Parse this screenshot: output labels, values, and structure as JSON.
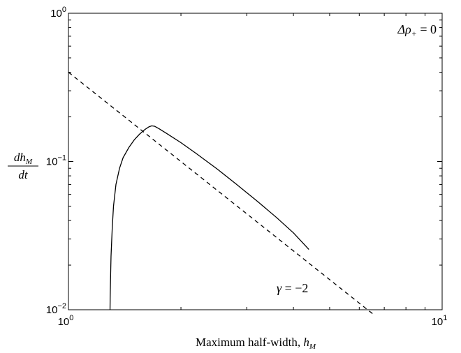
{
  "chart_data": {
    "type": "line",
    "xscale": "log",
    "yscale": "log",
    "xlim": [
      1,
      10
    ],
    "ylim": [
      0.01,
      1
    ],
    "grid": false,
    "xlabel": "Maximum half-width, h_M",
    "xlabel_text": "Maximum half-width, ",
    "xlabel_var": "h",
    "xlabel_sub": "M",
    "ylabel": "dh_M/dt",
    "ylabel_num": "dh",
    "ylabel_num_sub": "M",
    "ylabel_den": "dt",
    "xticks": [
      {
        "value": 1,
        "base": "10",
        "exp": "0"
      },
      {
        "value": 10,
        "base": "10",
        "exp": "1"
      }
    ],
    "yticks": [
      {
        "value": 0.01,
        "base": "10",
        "exp": "−2"
      },
      {
        "value": 0.1,
        "base": "10",
        "exp": "−1"
      },
      {
        "value": 1,
        "base": "10",
        "exp": "0"
      }
    ],
    "series": [
      {
        "style": "solid",
        "x": [
          1.292,
          1.293,
          1.296,
          1.3,
          1.31,
          1.32,
          1.34,
          1.37,
          1.4,
          1.45,
          1.5,
          1.55,
          1.6,
          1.64,
          1.67,
          1.7,
          1.75,
          1.85,
          2.0,
          2.2,
          2.5,
          2.8,
          3.2,
          3.6,
          4.0,
          4.4
        ],
        "y": [
          0.01,
          0.012,
          0.016,
          0.023,
          0.036,
          0.05,
          0.07,
          0.09,
          0.106,
          0.124,
          0.14,
          0.153,
          0.164,
          0.171,
          0.174,
          0.173,
          0.166,
          0.152,
          0.134,
          0.113,
          0.089,
          0.071,
          0.054,
          0.042,
          0.033,
          0.0255
        ]
      },
      {
        "style": "dashed",
        "x": [
          1.0,
          6.55
        ],
        "y": [
          0.4,
          0.0093
        ]
      }
    ],
    "annotations": [
      {
        "text_lead": "Δρ",
        "text_sub": "+",
        "text_tail": " = 0",
        "anchor_x": 10,
        "anchor_y": 1,
        "placement": "top-right"
      },
      {
        "text_lead": "γ",
        "text_sub": "",
        "text_tail": " = −2",
        "anchor_x": 4.35,
        "anchor_y": 0.014,
        "placement": "near dashed line"
      }
    ]
  }
}
